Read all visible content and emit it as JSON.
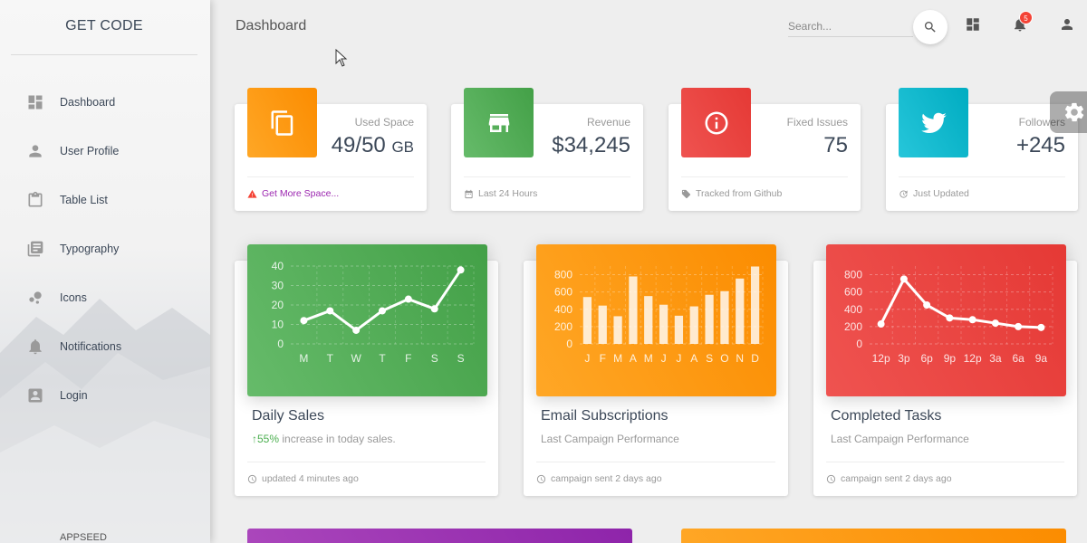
{
  "sidebar": {
    "brand": "GET CODE",
    "items": [
      {
        "label": "Dashboard",
        "icon": "dashboard-icon"
      },
      {
        "label": "User Profile",
        "icon": "person-icon"
      },
      {
        "label": "Table List",
        "icon": "clipboard-icon"
      },
      {
        "label": "Typography",
        "icon": "library-books-icon"
      },
      {
        "label": "Icons",
        "icon": "bubble-chart-icon"
      },
      {
        "label": "Notifications",
        "icon": "bell-icon"
      },
      {
        "label": "Login",
        "icon": "account-box-icon"
      }
    ],
    "footer": "APPSEED"
  },
  "topbar": {
    "title": "Dashboard",
    "search_placeholder": "Search...",
    "notification_count": "5"
  },
  "stats": [
    {
      "category": "Used Space",
      "value": "49/50",
      "unit": "GB",
      "footer": "Get More Space...",
      "color": "#ff9800",
      "icon": "content-copy-icon",
      "footer_icon": "warning-icon"
    },
    {
      "category": "Revenue",
      "value": "$34,245",
      "unit": "",
      "footer": "Last 24 Hours",
      "color": "#4caf50",
      "icon": "store-icon",
      "footer_icon": "date-range-icon"
    },
    {
      "category": "Fixed Issues",
      "value": "75",
      "unit": "",
      "footer": "Tracked from Github",
      "color": "#f44336",
      "icon": "info-icon",
      "footer_icon": "local-offer-icon"
    },
    {
      "category": "Followers",
      "value": "+245",
      "unit": "",
      "footer": "Just Updated",
      "color": "#00bcd4",
      "icon": "twitter-icon",
      "footer_icon": "update-icon"
    }
  ],
  "charts": [
    {
      "title": "Daily Sales",
      "subtitle_pct": "55%",
      "subtitle_rest": " increase in today sales.",
      "footer": "updated 4 minutes ago",
      "color": "#4caf50"
    },
    {
      "title": "Email Subscriptions",
      "subtitle": "Last Campaign Performance",
      "footer": "campaign sent 2 days ago",
      "color": "#ff9800"
    },
    {
      "title": "Completed Tasks",
      "subtitle": "Last Campaign Performance",
      "footer": "campaign sent 2 days ago",
      "color": "#f44336"
    }
  ],
  "chart_data": [
    {
      "type": "line",
      "categories": [
        "M",
        "T",
        "W",
        "T",
        "F",
        "S",
        "S"
      ],
      "values": [
        12,
        17,
        7,
        17,
        23,
        18,
        38
      ],
      "ylim": [
        0,
        40
      ],
      "yticks": [
        "0",
        "10",
        "20",
        "30",
        "40"
      ]
    },
    {
      "type": "bar",
      "categories": [
        "J",
        "F",
        "M",
        "A",
        "M",
        "J",
        "J",
        "A",
        "S",
        "O",
        "N",
        "D"
      ],
      "values": [
        542,
        443,
        320,
        780,
        553,
        453,
        326,
        434,
        568,
        610,
        756,
        895
      ],
      "ylim": [
        0,
        900
      ],
      "yticks": [
        "0",
        "200",
        "400",
        "600",
        "800"
      ]
    },
    {
      "type": "line",
      "categories": [
        "12p",
        "3p",
        "6p",
        "9p",
        "12p",
        "3a",
        "6a",
        "9a"
      ],
      "values": [
        230,
        750,
        450,
        300,
        280,
        240,
        200,
        190
      ],
      "ylim": [
        0,
        900
      ],
      "yticks": [
        "0",
        "200",
        "400",
        "600",
        "800"
      ]
    }
  ],
  "bottom_cards": [
    {
      "color": "#9c27b0"
    },
    {
      "color": "#ff9800"
    }
  ]
}
